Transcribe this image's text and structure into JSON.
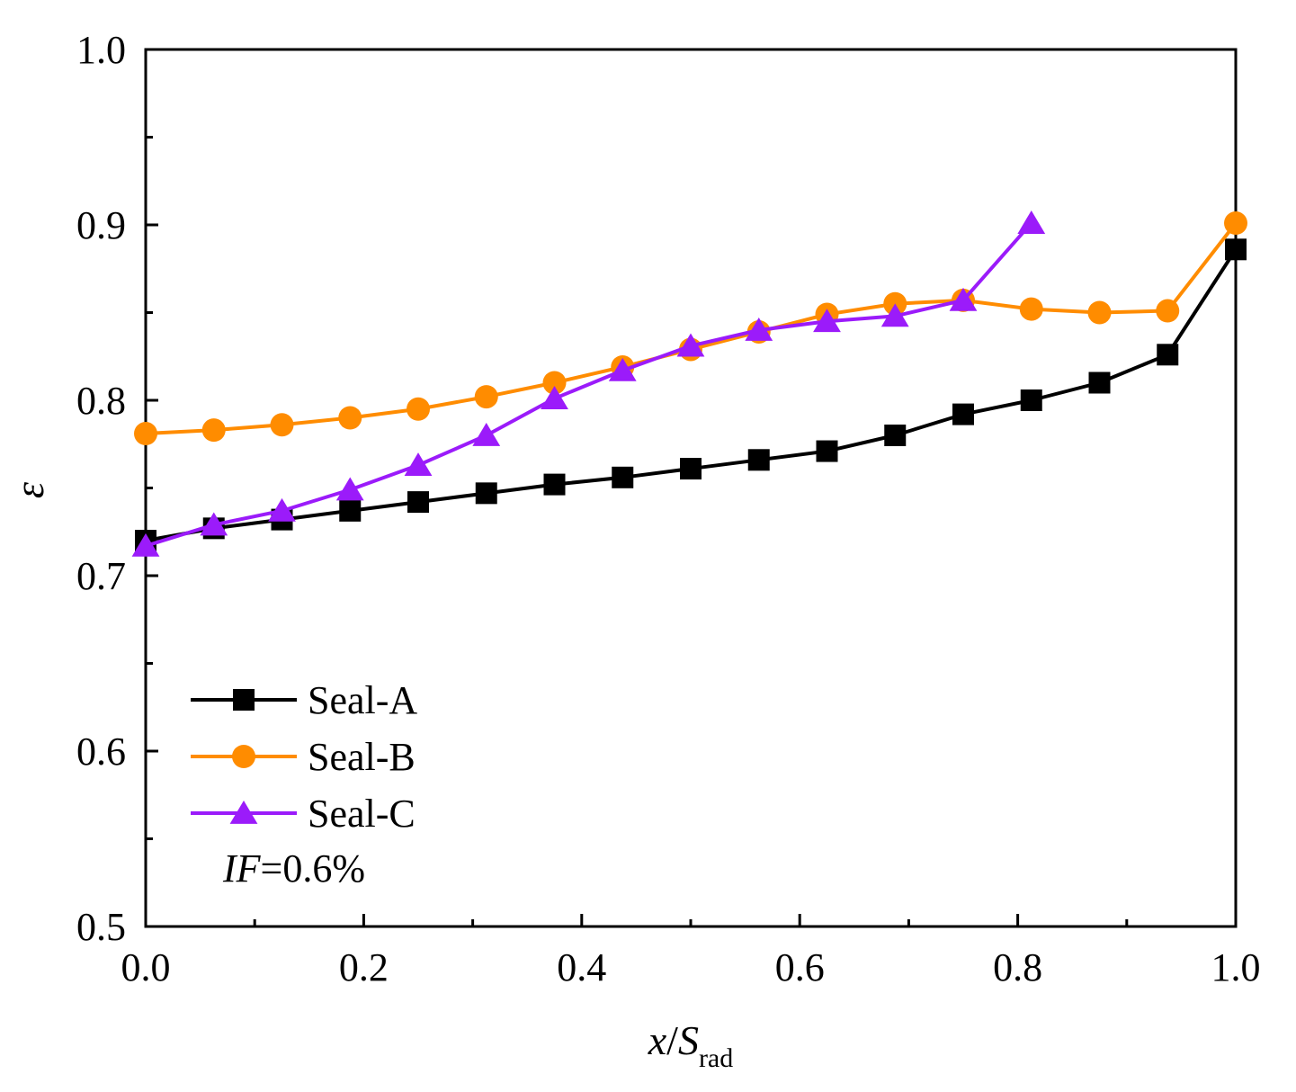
{
  "chart_data": {
    "type": "line",
    "xlabel": {
      "main": "x",
      "sep": "/",
      "var": "S",
      "sub": "rad"
    },
    "ylabel": "ε",
    "xlim": [
      0.0,
      1.0
    ],
    "ylim": [
      0.5,
      1.0
    ],
    "xticks": [
      "0.0",
      "0.2",
      "0.4",
      "0.6",
      "0.8",
      "1.0"
    ],
    "yticks": [
      "0.5",
      "0.6",
      "0.7",
      "0.8",
      "0.9",
      "1.0"
    ],
    "annotation": {
      "italic": "IF",
      "rest": "=0.6%"
    },
    "legend_position": "bottom-left",
    "series": [
      {
        "name": "Seal-A",
        "color": "#000000",
        "marker": "square",
        "x": [
          0.0,
          0.0625,
          0.125,
          0.1875,
          0.25,
          0.3125,
          0.375,
          0.4375,
          0.5,
          0.5625,
          0.625,
          0.6875,
          0.75,
          0.8125,
          0.875,
          0.9375,
          1.0
        ],
        "y": [
          0.72,
          0.727,
          0.732,
          0.737,
          0.742,
          0.747,
          0.752,
          0.756,
          0.761,
          0.766,
          0.771,
          0.78,
          0.792,
          0.8,
          0.81,
          0.826,
          0.886
        ]
      },
      {
        "name": "Seal-B",
        "color": "#FF8C00",
        "marker": "circle",
        "x": [
          0.0,
          0.0625,
          0.125,
          0.1875,
          0.25,
          0.3125,
          0.375,
          0.4375,
          0.5,
          0.5625,
          0.625,
          0.6875,
          0.75,
          0.8125,
          0.875,
          0.9375,
          1.0
        ],
        "y": [
          0.781,
          0.783,
          0.786,
          0.79,
          0.795,
          0.802,
          0.81,
          0.819,
          0.829,
          0.839,
          0.849,
          0.855,
          0.857,
          0.852,
          0.85,
          0.851,
          0.901
        ]
      },
      {
        "name": "Seal-C",
        "color": "#9B1BFA",
        "marker": "triangle",
        "x": [
          0.0,
          0.0625,
          0.125,
          0.1875,
          0.25,
          0.3125,
          0.375,
          0.4375,
          0.5,
          0.5625,
          0.625,
          0.6875,
          0.75,
          0.8125
        ],
        "y": [
          0.717,
          0.729,
          0.737,
          0.749,
          0.763,
          0.78,
          0.801,
          0.817,
          0.831,
          0.84,
          0.845,
          0.848,
          0.857,
          0.901
        ]
      }
    ]
  }
}
